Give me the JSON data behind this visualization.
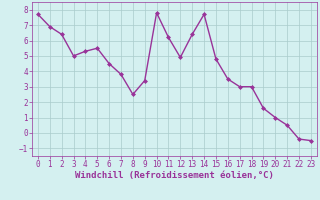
{
  "x": [
    0,
    1,
    2,
    3,
    4,
    5,
    6,
    7,
    8,
    9,
    10,
    11,
    12,
    13,
    14,
    15,
    16,
    17,
    18,
    19,
    20,
    21,
    22,
    23
  ],
  "y": [
    7.7,
    6.9,
    6.4,
    5.0,
    5.3,
    5.5,
    4.5,
    3.8,
    2.5,
    3.4,
    7.8,
    6.2,
    4.9,
    6.4,
    7.7,
    4.8,
    3.5,
    3.0,
    3.0,
    1.6,
    1.0,
    0.5,
    -0.4,
    -0.5
  ],
  "line_color": "#993399",
  "marker": "D",
  "marker_size": 2,
  "bg_color": "#d4f0f0",
  "grid_color": "#aacccc",
  "xlabel": "Windchill (Refroidissement éolien,°C)",
  "xlim": [
    -0.5,
    23.5
  ],
  "ylim": [
    -1.5,
    8.5
  ],
  "yticks": [
    -1,
    0,
    1,
    2,
    3,
    4,
    5,
    6,
    7,
    8
  ],
  "xticks": [
    0,
    1,
    2,
    3,
    4,
    5,
    6,
    7,
    8,
    9,
    10,
    11,
    12,
    13,
    14,
    15,
    16,
    17,
    18,
    19,
    20,
    21,
    22,
    23
  ],
  "tick_label_fontsize": 5.5,
  "xlabel_fontsize": 6.5,
  "line_width": 1.0
}
